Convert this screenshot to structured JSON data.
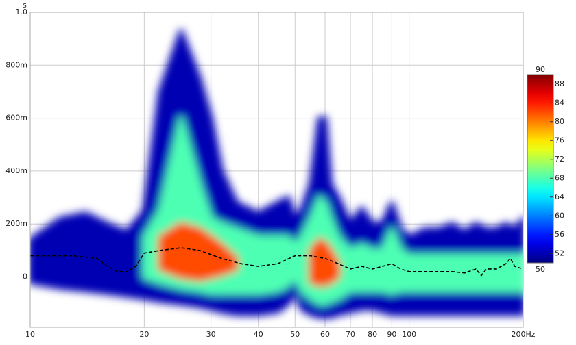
{
  "chart_data": {
    "type": "spectrogram",
    "y_unit": "s",
    "xlog": true,
    "grid": true,
    "xlim": [
      10,
      200
    ],
    "xticks": [
      10,
      20,
      30,
      40,
      50,
      60,
      70,
      80,
      90,
      100,
      {
        "value": 200,
        "label": "200Hz"
      }
    ],
    "ylim": [
      -0.19,
      1.0
    ],
    "yticks": [
      {
        "value": 0,
        "label": "0"
      },
      {
        "value": 0.2,
        "label": "200m"
      },
      {
        "value": 0.4,
        "label": "400m"
      },
      {
        "value": 0.6,
        "label": "600m"
      },
      {
        "value": 0.8,
        "label": "800m"
      },
      {
        "value": 1.0,
        "label": "1.0"
      }
    ],
    "colorbar": {
      "lim": [
        50,
        90
      ],
      "ticks": [
        52,
        56,
        60,
        64,
        68,
        72,
        76,
        80,
        84,
        88
      ]
    },
    "frequencies": [
      10,
      12,
      14,
      16,
      18,
      20,
      22,
      25,
      28,
      30,
      32,
      35,
      40,
      45,
      48,
      50,
      52,
      55,
      58,
      60,
      62,
      65,
      70,
      75,
      80,
      85,
      90,
      95,
      100,
      110,
      120,
      130,
      140,
      150,
      160,
      170,
      180,
      190,
      200
    ],
    "levels": [
      {
        "level": 52,
        "top": [
          0.14,
          0.22,
          0.24,
          0.2,
          0.17,
          0.25,
          0.7,
          0.93,
          0.75,
          0.6,
          0.4,
          0.28,
          0.24,
          0.28,
          0.3,
          0.22,
          0.25,
          0.35,
          0.6,
          0.6,
          0.35,
          0.3,
          0.2,
          0.26,
          0.2,
          0.2,
          0.28,
          0.18,
          0.15,
          0.18,
          0.18,
          0.2,
          0.17,
          0.2,
          0.18,
          0.18,
          0.2,
          0.18,
          0.22
        ],
        "bottom": [
          -0.02,
          -0.04,
          -0.05,
          -0.06,
          -0.07,
          -0.08,
          -0.09,
          -0.1,
          -0.11,
          -0.12,
          -0.13,
          -0.14,
          -0.14,
          -0.13,
          -0.1,
          -0.05,
          -0.12,
          -0.14,
          -0.15,
          -0.15,
          -0.15,
          -0.14,
          -0.13,
          -0.12,
          -0.12,
          -0.13,
          -0.14,
          -0.14,
          -0.14,
          -0.14,
          -0.14,
          -0.14,
          -0.14,
          -0.14,
          -0.14,
          -0.14,
          -0.14,
          -0.14,
          -0.14
        ]
      },
      {
        "level": 68,
        "top": [
          null,
          null,
          null,
          null,
          null,
          0.15,
          0.25,
          0.6,
          0.35,
          0.22,
          0.2,
          0.18,
          0.15,
          0.15,
          0.15,
          0.12,
          0.15,
          0.22,
          0.3,
          0.28,
          0.22,
          0.15,
          0.1,
          0.12,
          0.1,
          0.1,
          0.18,
          0.1,
          0.08,
          0.08,
          0.08,
          0.08,
          0.08,
          0.08,
          0.08,
          0.08,
          0.08,
          0.08,
          0.08
        ],
        "bottom": [
          null,
          null,
          null,
          null,
          null,
          0.0,
          -0.02,
          -0.04,
          -0.05,
          -0.06,
          -0.06,
          -0.06,
          -0.06,
          -0.05,
          -0.03,
          0.0,
          -0.05,
          -0.08,
          -0.1,
          -0.1,
          -0.09,
          -0.08,
          -0.05,
          -0.05,
          -0.05,
          -0.05,
          -0.06,
          -0.05,
          -0.05,
          -0.05,
          -0.05,
          -0.05,
          -0.05,
          -0.05,
          -0.05,
          -0.05,
          -0.05,
          -0.05,
          -0.05
        ]
      },
      {
        "level": 82,
        "top": [
          null,
          null,
          null,
          null,
          null,
          null,
          0.15,
          0.2,
          0.18,
          0.15,
          0.12,
          0.07,
          null,
          null,
          null,
          null,
          null,
          0.1,
          0.14,
          0.13,
          0.1,
          0.05,
          null,
          null,
          null,
          null,
          null,
          null,
          null,
          null,
          null,
          null,
          null,
          null,
          null,
          null,
          null,
          null,
          null
        ],
        "bottom": [
          null,
          null,
          null,
          null,
          null,
          null,
          0.03,
          0.0,
          -0.01,
          0.0,
          0.01,
          0.03,
          null,
          null,
          null,
          null,
          null,
          -0.02,
          -0.03,
          -0.03,
          -0.02,
          0.0,
          null,
          null,
          null,
          null,
          null,
          null,
          null,
          null,
          null,
          null,
          null,
          null,
          null,
          null,
          null,
          null,
          null
        ]
      }
    ],
    "peak_line": {
      "color": "#000000",
      "x": [
        10,
        13,
        15,
        16,
        17,
        18,
        19,
        20,
        22,
        25,
        28,
        32,
        36,
        40,
        45,
        50,
        55,
        60,
        65,
        70,
        75,
        80,
        85,
        90,
        95,
        100,
        110,
        120,
        130,
        140,
        150,
        155,
        160,
        170,
        180,
        185,
        190,
        200
      ],
      "values": [
        0.08,
        0.08,
        0.07,
        0.04,
        0.02,
        0.02,
        0.04,
        0.09,
        0.1,
        0.11,
        0.1,
        0.07,
        0.05,
        0.04,
        0.05,
        0.08,
        0.08,
        0.07,
        0.05,
        0.03,
        0.04,
        0.03,
        0.04,
        0.05,
        0.03,
        0.02,
        0.02,
        0.02,
        0.02,
        0.015,
        0.03,
        0.005,
        0.03,
        0.03,
        0.05,
        0.07,
        0.04,
        0.03
      ]
    }
  }
}
